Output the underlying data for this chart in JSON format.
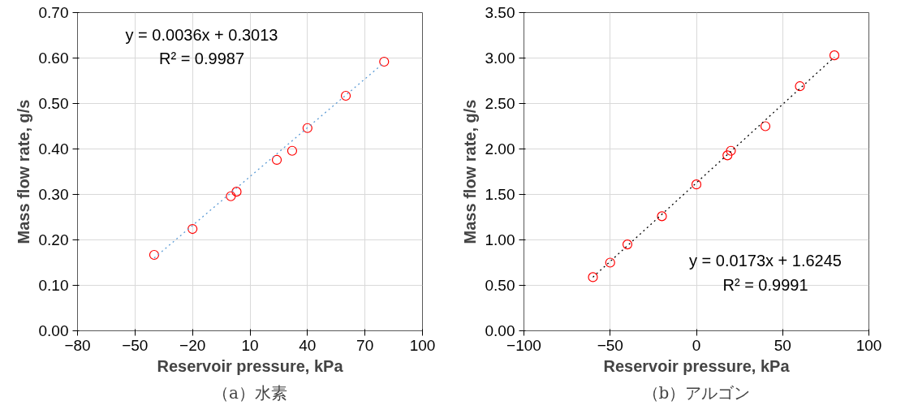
{
  "chart_data": [
    {
      "type": "scatter",
      "xlabel": "Reservoir pressure, kPa",
      "ylabel": "Mass flow rate, g/s",
      "xlim": [
        -80,
        100
      ],
      "xticks": [
        -80,
        -50,
        -20,
        10,
        40,
        70,
        100
      ],
      "ylim": [
        0,
        0.7
      ],
      "yticks": [
        {
          "value": 0,
          "label": "0.00"
        },
        {
          "value": 0.1,
          "label": "0.10"
        },
        {
          "value": 0.2,
          "label": "0.20"
        },
        {
          "value": 0.3,
          "label": "0.30"
        },
        {
          "value": 0.4,
          "label": "0.40"
        },
        {
          "value": 0.5,
          "label": "0.50"
        },
        {
          "value": 0.6,
          "label": "0.60"
        },
        {
          "value": 0.7,
          "label": "0.70"
        }
      ],
      "grid": true,
      "series": [
        {
          "marker": "circle",
          "color": "#ff0000",
          "x": [
            -40,
            -20,
            0,
            3,
            24,
            32,
            40,
            60,
            80
          ],
          "values": [
            0.167,
            0.224,
            0.296,
            0.306,
            0.376,
            0.396,
            0.446,
            0.517,
            0.592
          ]
        },
        {
          "type": "line",
          "marker": "none",
          "line_style": "dotted",
          "color": "#5b9bd5",
          "x": [
            -40,
            80
          ],
          "values": [
            0.16,
            0.59
          ]
        }
      ],
      "annotations": [
        "y = 0.0036x + 0.3013",
        "R² = 0.9987",
        "（a）水素"
      ]
    },
    {
      "type": "scatter",
      "xlabel": "Reservoir pressure, kPa",
      "ylabel": "Mass flow rate, g/s",
      "xlim": [
        -100,
        100
      ],
      "xticks": [
        -100,
        -50,
        0,
        50,
        100
      ],
      "ylim": [
        0,
        3.5
      ],
      "yticks": [
        {
          "value": 0,
          "label": "0.00"
        },
        {
          "value": 0.5,
          "label": "0.50"
        },
        {
          "value": 1,
          "label": "1.00"
        },
        {
          "value": 1.5,
          "label": "1.50"
        },
        {
          "value": 2,
          "label": "2.00"
        },
        {
          "value": 2.5,
          "label": "2.50"
        },
        {
          "value": 3,
          "label": "3.00"
        },
        {
          "value": 3.5,
          "label": "3.50"
        }
      ],
      "grid": true,
      "series": [
        {
          "marker": "circle",
          "color": "#ff0000",
          "x": [
            -60,
            -50,
            -40,
            -20,
            0,
            18,
            20,
            40,
            60,
            80
          ],
          "values": [
            0.59,
            0.75,
            0.95,
            1.26,
            1.61,
            1.93,
            1.98,
            2.25,
            2.69,
            3.03
          ]
        },
        {
          "type": "line",
          "marker": "none",
          "line_style": "dotted",
          "color": "#000000",
          "x": [
            -60,
            80
          ],
          "values": [
            0.59,
            3.01
          ]
        }
      ],
      "annotations": [
        "y = 0.0173x + 1.6245",
        "R² = 0.9991",
        "（b）アルゴン"
      ]
    }
  ]
}
